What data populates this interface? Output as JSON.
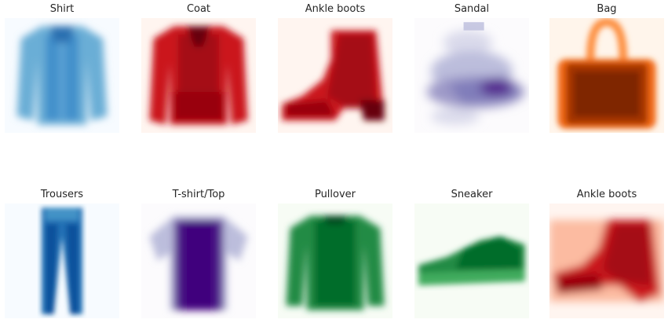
{
  "panels": [
    {
      "title": "Shirt",
      "colormap": "Blues",
      "dark": "#08306b",
      "mid": "#4292c6",
      "light": "#f7fbff",
      "icon": "shirt-icon"
    },
    {
      "title": "Coat",
      "colormap": "Reds",
      "dark": "#67000d",
      "mid": "#cb181d",
      "light": "#fff5f0",
      "icon": "coat-icon"
    },
    {
      "title": "Ankle boots",
      "colormap": "Reds",
      "dark": "#67000d",
      "mid": "#cb181d",
      "light": "#fff5f0",
      "icon": "ankle-boot-icon"
    },
    {
      "title": "Sandal",
      "colormap": "Purples",
      "dark": "#3f007d",
      "mid": "#807dba",
      "light": "#fcfbfd",
      "icon": "sandal-icon"
    },
    {
      "title": "Bag",
      "colormap": "Oranges",
      "dark": "#7f2704",
      "mid": "#f16913",
      "light": "#fff5eb",
      "icon": "bag-icon"
    },
    {
      "title": "Trousers",
      "colormap": "Blues",
      "dark": "#08306b",
      "mid": "#2171b5",
      "light": "#f7fbff",
      "icon": "trousers-icon"
    },
    {
      "title": "T-shirt/Top",
      "colormap": "Purples",
      "dark": "#3f007d",
      "mid": "#6a51a3",
      "light": "#fcfbfd",
      "icon": "tshirt-icon"
    },
    {
      "title": "Pullover",
      "colormap": "Greens",
      "dark": "#00441b",
      "mid": "#238b45",
      "light": "#f7fcf5",
      "icon": "pullover-icon"
    },
    {
      "title": "Sneaker",
      "colormap": "Greens",
      "dark": "#00441b",
      "mid": "#238b45",
      "light": "#f7fcf5",
      "icon": "sneaker-icon"
    },
    {
      "title": "Ankle boots",
      "colormap": "Reds",
      "dark": "#67000d",
      "mid": "#cb181d",
      "light": "#fff5f0",
      "icon": "ankle-boot-icon"
    }
  ]
}
